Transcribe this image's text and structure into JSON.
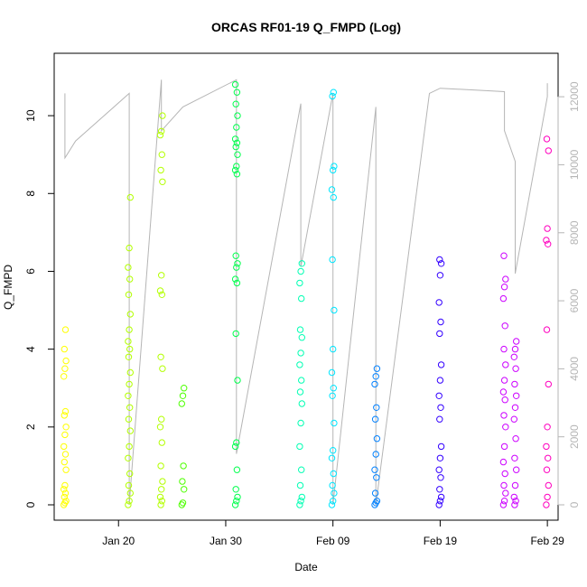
{
  "chart_data": {
    "type": "scatter",
    "title": "ORCAS RF01-19 Q_FMPD (Log)",
    "xlabel": "Date",
    "ylabel": "Q_FMPD",
    "x_ticks": [
      "Jan 20",
      "Jan 30",
      "Feb 09",
      "Feb 19",
      "Feb 29"
    ],
    "y_ticks": [
      "0",
      "2",
      "4",
      "6",
      "8",
      "10"
    ],
    "y2_ticks": [
      "0",
      "2000",
      "4000",
      "6000",
      "8000",
      "10000",
      "12000"
    ],
    "xlim": [
      "2016-01-14",
      "2016-03-01"
    ],
    "ylim": [
      0,
      11
    ],
    "y2lim": [
      0,
      12800
    ],
    "grid": false,
    "point_style": "open circle, colour shifts yellow → green → cyan → blue → magenta with date",
    "line_series": {
      "description": "grey line, right axis (altitude-like trace)",
      "color": "#b5b5b5",
      "x": [
        "2016-01-15",
        "2016-01-15",
        "2016-01-16",
        "2016-01-21",
        "2016-01-21",
        "2016-01-24",
        "2016-01-24",
        "2016-01-26",
        "2016-01-31",
        "2016-01-31",
        "2016-02-06",
        "2016-02-06",
        "2016-02-09",
        "2016-02-09",
        "2016-02-13",
        "2016-02-13",
        "2016-02-18",
        "2016-02-19",
        "2016-02-25",
        "2016-02-25",
        "2016-02-26",
        "2016-02-26",
        "2016-02-29",
        "2016-02-29"
      ],
      "y": [
        12100,
        10200,
        10700,
        12100,
        0,
        12500,
        11000,
        11700,
        12500,
        1500,
        11800,
        7000,
        12100,
        0,
        11700,
        0,
        12100,
        12250,
        12150,
        11000,
        10100,
        6800,
        12000,
        12400
      ]
    },
    "series": [
      {
        "color": "#ffff00",
        "points": [
          {
            "x": "2016-01-15",
            "y": [
              0,
              0.05,
              0.1,
              0.2,
              0.3,
              0.4,
              0.5,
              0.9,
              1.1,
              1.3,
              1.5,
              1.8,
              2.0,
              2.3,
              2.4,
              3.3,
              3.5,
              3.7,
              4.0,
              4.5
            ]
          }
        ]
      },
      {
        "color": "#b3ff00",
        "points": [
          {
            "x": "2016-01-21",
            "y": [
              0,
              0.1,
              0.3,
              0.5,
              0.8,
              1.2,
              1.5,
              1.9,
              2.2,
              2.5,
              2.8,
              3.1,
              3.4,
              3.8,
              4.0,
              4.2,
              4.5,
              4.9,
              5.4,
              5.8,
              6.1,
              6.6,
              7.9
            ]
          },
          {
            "x": "2016-01-24",
            "y": [
              0,
              0.1,
              0.2,
              0.4,
              0.6,
              1.0,
              1.6,
              2.0,
              2.2,
              3.5,
              3.8,
              5.4,
              5.5,
              5.9,
              8.3,
              8.6,
              9.0,
              9.5,
              9.6,
              10.0
            ]
          }
        ]
      },
      {
        "color": "#4dff00",
        "points": [
          {
            "x": "2016-01-26",
            "y": [
              0,
              0.05,
              0.4,
              0.6,
              1.0,
              2.6,
              2.8,
              3.0
            ]
          }
        ]
      },
      {
        "color": "#00ff4d",
        "points": [
          {
            "x": "2016-01-31",
            "y": [
              0,
              0.1,
              0.2,
              0.4,
              0.9,
              1.5,
              1.6,
              3.2,
              4.4,
              5.7,
              5.8,
              6.1,
              6.2,
              6.4,
              8.5,
              8.6,
              8.7,
              9.0,
              9.2,
              9.3,
              9.4,
              9.7,
              10.0,
              10.3,
              10.6,
              10.8
            ]
          }
        ]
      },
      {
        "color": "#00ffb3",
        "points": [
          {
            "x": "2016-02-06",
            "y": [
              0,
              0.1,
              0.2,
              0.5,
              0.9,
              1.5,
              2.1,
              2.6,
              2.9,
              3.2,
              3.6,
              3.9,
              4.3,
              4.5,
              5.3,
              5.7,
              6.0,
              6.2
            ]
          }
        ]
      },
      {
        "color": "#00e6ff",
        "points": [
          {
            "x": "2016-02-09",
            "y": [
              0,
              0.1,
              0.3,
              0.5,
              0.8,
              1.2,
              1.4,
              2.1,
              2.8,
              3.0,
              3.4,
              4.0,
              5.0,
              6.3,
              7.9,
              8.1,
              8.6,
              8.7,
              10.5,
              10.6
            ]
          }
        ]
      },
      {
        "color": "#0080ff",
        "points": [
          {
            "x": "2016-02-13",
            "y": [
              0,
              0.05,
              0.1,
              0.3,
              0.7,
              0.9,
              1.3,
              1.7,
              2.2,
              2.5,
              3.1,
              3.3,
              3.5
            ]
          }
        ]
      },
      {
        "color": "#3300ff",
        "points": [
          {
            "x": "2016-02-19",
            "y": [
              0,
              0.1,
              0.2,
              0.4,
              0.7,
              0.9,
              1.2,
              1.5,
              2.2,
              2.5,
              2.8,
              3.2,
              3.6,
              4.4,
              4.7,
              5.2,
              5.9,
              6.2,
              6.3
            ]
          }
        ]
      },
      {
        "color": "#cc00ff",
        "points": [
          {
            "x": "2016-02-25",
            "y": [
              0,
              0.1,
              0.3,
              0.5,
              0.8,
              1.1,
              1.5,
              2.0,
              2.3,
              2.7,
              2.9,
              3.2,
              3.6,
              4.0,
              4.6,
              5.3,
              5.6,
              5.8,
              6.4
            ]
          },
          {
            "x": "2016-02-26",
            "y": [
              0,
              0.1,
              0.2,
              0.5,
              0.9,
              1.2,
              1.7,
              2.2,
              2.5,
              2.8,
              3.1,
              3.5,
              3.8,
              4.0,
              4.2
            ]
          }
        ]
      },
      {
        "color": "#ff00bf",
        "points": [
          {
            "x": "2016-02-29",
            "y": [
              0,
              0.2,
              0.5,
              0.9,
              1.2,
              1.5,
              2.0,
              3.1,
              4.5,
              6.7,
              6.8,
              7.1,
              9.1,
              9.4
            ]
          }
        ]
      }
    ]
  }
}
